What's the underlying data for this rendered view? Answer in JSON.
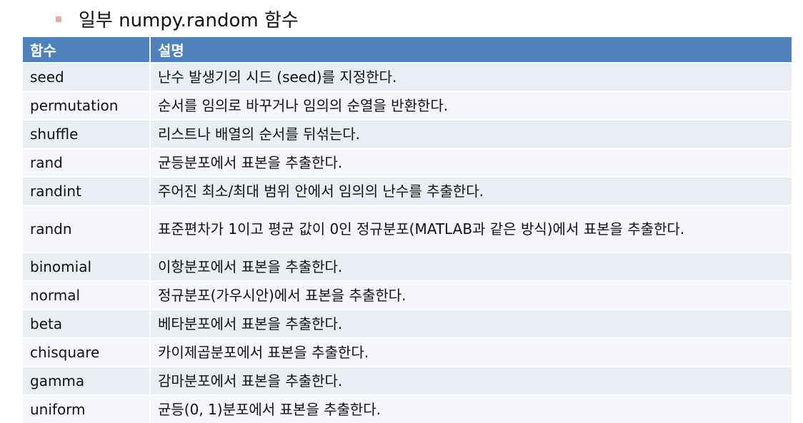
{
  "title": "일부 numpy.random 함수",
  "table": {
    "headers": [
      "함수",
      "설명"
    ],
    "rows": [
      {
        "name": "seed",
        "desc": "난수 발생기의 시드 (seed)를 지정한다."
      },
      {
        "name": "permutation",
        "desc": "순서를 임의로 바꾸거나 임의의 순열을 반환한다."
      },
      {
        "name": "shuffle",
        "desc": "리스트나 배열의 순서를 뒤섞는다."
      },
      {
        "name": "rand",
        "desc": "균등분포에서 표본을 추출한다."
      },
      {
        "name": "randint",
        "desc": "주어진 최소/최대 범위 안에서 임의의 난수를 추출한다."
      },
      {
        "name": "randn",
        "desc": "표준편차가 1이고 평균 값이 0인 정규분포(MATLAB과 같은 방식)에서 표본을 추출한다."
      },
      {
        "name": "binomial",
        "desc": "이항분포에서 표본을 추출한다."
      },
      {
        "name": "normal",
        "desc": "정규분포(가우시안)에서 표본을 추출한다."
      },
      {
        "name": "beta",
        "desc": "베타분포에서 표본을 추출한다."
      },
      {
        "name": "chisquare",
        "desc": "카이제곱분포에서 표본을 추출한다."
      },
      {
        "name": "gamma",
        "desc": "감마분포에서 표본을 추출한다."
      },
      {
        "name": "uniform",
        "desc": "균등(0, 1)분포에서 표본을 추출한다."
      }
    ]
  },
  "colors": {
    "header_bg": "#4f81bd",
    "row_odd": "#e9edf4",
    "row_even": "#f4f6fa",
    "bullet": "#e8a9a9"
  }
}
